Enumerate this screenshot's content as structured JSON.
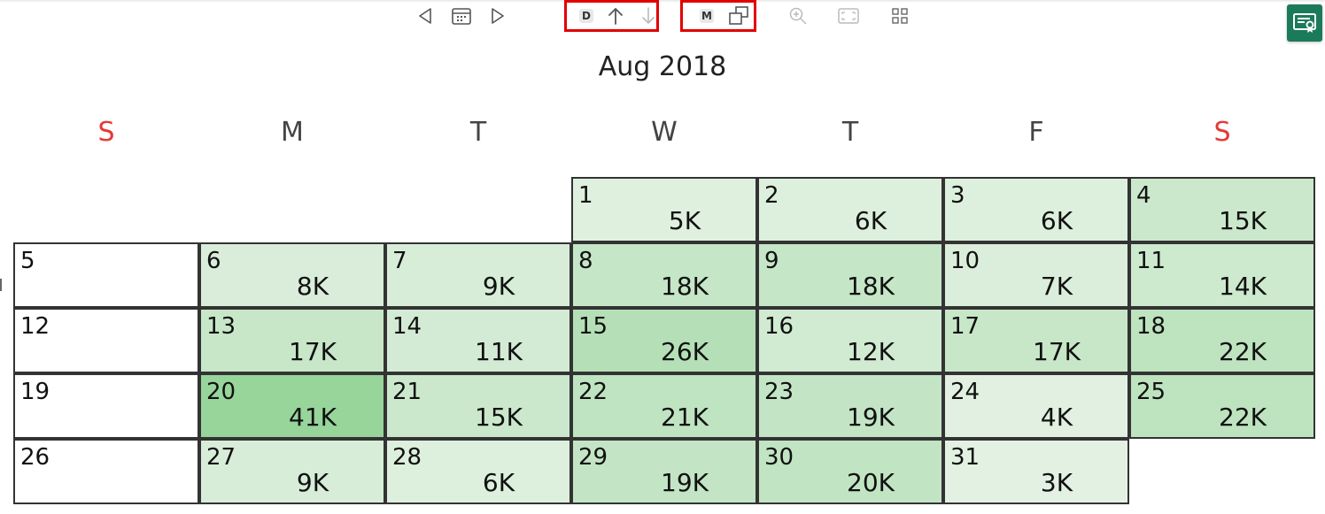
{
  "toolbar": {
    "drill_letter": "D",
    "mode_letter": "M"
  },
  "calendar": {
    "title": "Aug 2018",
    "weekdays": [
      {
        "label": "S",
        "weekend": true
      },
      {
        "label": "M",
        "weekend": false
      },
      {
        "label": "T",
        "weekend": false
      },
      {
        "label": "W",
        "weekend": false
      },
      {
        "label": "T",
        "weekend": false
      },
      {
        "label": "F",
        "weekend": false
      },
      {
        "label": "S",
        "weekend": true
      }
    ],
    "first_weekday_index": 3,
    "days": [
      {
        "day": "1",
        "value": "5K",
        "amount": 5
      },
      {
        "day": "2",
        "value": "6K",
        "amount": 6
      },
      {
        "day": "3",
        "value": "6K",
        "amount": 6
      },
      {
        "day": "4",
        "value": "15K",
        "amount": 15
      },
      {
        "day": "5",
        "value": "",
        "amount": 0
      },
      {
        "day": "6",
        "value": "8K",
        "amount": 8
      },
      {
        "day": "7",
        "value": "9K",
        "amount": 9
      },
      {
        "day": "8",
        "value": "18K",
        "amount": 18
      },
      {
        "day": "9",
        "value": "18K",
        "amount": 18
      },
      {
        "day": "10",
        "value": "7K",
        "amount": 7
      },
      {
        "day": "11",
        "value": "14K",
        "amount": 14
      },
      {
        "day": "12",
        "value": "",
        "amount": 0
      },
      {
        "day": "13",
        "value": "17K",
        "amount": 17
      },
      {
        "day": "14",
        "value": "11K",
        "amount": 11
      },
      {
        "day": "15",
        "value": "26K",
        "amount": 26
      },
      {
        "day": "16",
        "value": "12K",
        "amount": 12
      },
      {
        "day": "17",
        "value": "17K",
        "amount": 17
      },
      {
        "day": "18",
        "value": "22K",
        "amount": 22
      },
      {
        "day": "19",
        "value": "",
        "amount": 0
      },
      {
        "day": "20",
        "value": "41K",
        "amount": 41
      },
      {
        "day": "21",
        "value": "15K",
        "amount": 15
      },
      {
        "day": "22",
        "value": "21K",
        "amount": 21
      },
      {
        "day": "23",
        "value": "19K",
        "amount": 19
      },
      {
        "day": "24",
        "value": "4K",
        "amount": 4
      },
      {
        "day": "25",
        "value": "22K",
        "amount": 22
      },
      {
        "day": "26",
        "value": "",
        "amount": 0
      },
      {
        "day": "27",
        "value": "9K",
        "amount": 9
      },
      {
        "day": "28",
        "value": "6K",
        "amount": 6
      },
      {
        "day": "29",
        "value": "19K",
        "amount": 19
      },
      {
        "day": "30",
        "value": "20K",
        "amount": 20
      },
      {
        "day": "31",
        "value": "3K",
        "amount": 3
      }
    ],
    "colors": {
      "weekend_label": "#e53935",
      "heat_low": "#e3f1e3",
      "heat_high": "#97d59b",
      "highlight_box": "#e10000",
      "side_button": "#1b7a5a"
    }
  }
}
